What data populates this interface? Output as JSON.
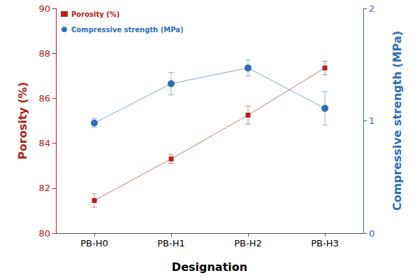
{
  "chart_data": {
    "type": "line",
    "x_label": "Designation",
    "y_label": "Porosity (%)",
    "y2_label": "Compressive strength (MPa)",
    "categories": [
      "PB-H0",
      "PB-H1",
      "PB-H2",
      "PB-H3"
    ],
    "ylim": [
      80,
      90
    ],
    "yticks": [
      80,
      82,
      84,
      86,
      88,
      90
    ],
    "y2lim": [
      0,
      2
    ],
    "y2ticks": [
      0,
      1,
      2
    ],
    "grid": false,
    "legend": "upper left",
    "series": [
      {
        "name": "Porosity (%)",
        "color": "#b22222",
        "marker": "square",
        "axis": "y",
        "values": [
          81.45,
          83.3,
          85.25,
          87.35
        ],
        "errors": [
          0.3,
          0.2,
          0.4,
          0.3
        ]
      },
      {
        "name": "Compressive strength (MPa)",
        "color": "#2e6fba",
        "marker": "circle",
        "axis": "y2",
        "values": [
          0.98,
          1.33,
          1.47,
          1.11
        ],
        "errors": [
          0.04,
          0.1,
          0.07,
          0.15
        ]
      }
    ]
  }
}
